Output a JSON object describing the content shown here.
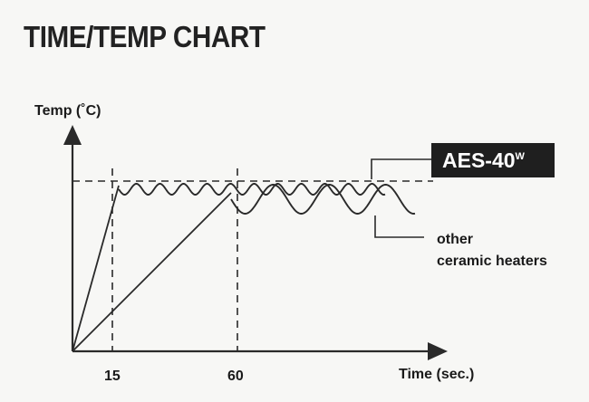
{
  "chart_data": {
    "type": "line",
    "title": "TIME/TEMP CHART",
    "ylabel": "Temp (˚C)",
    "xlabel": "Time (sec.)",
    "x_ticks": [
      15,
      60
    ],
    "series": [
      {
        "name": "AES-40W",
        "description_label": "AES-40",
        "superscript": "W",
        "ramp_end_time": 15,
        "oscillation": "small"
      },
      {
        "name": "other ceramic heaters",
        "label_lines": [
          "other",
          "ceramic heaters"
        ],
        "ramp_end_time": 60,
        "oscillation": "large"
      }
    ],
    "target_line": "dashed"
  }
}
